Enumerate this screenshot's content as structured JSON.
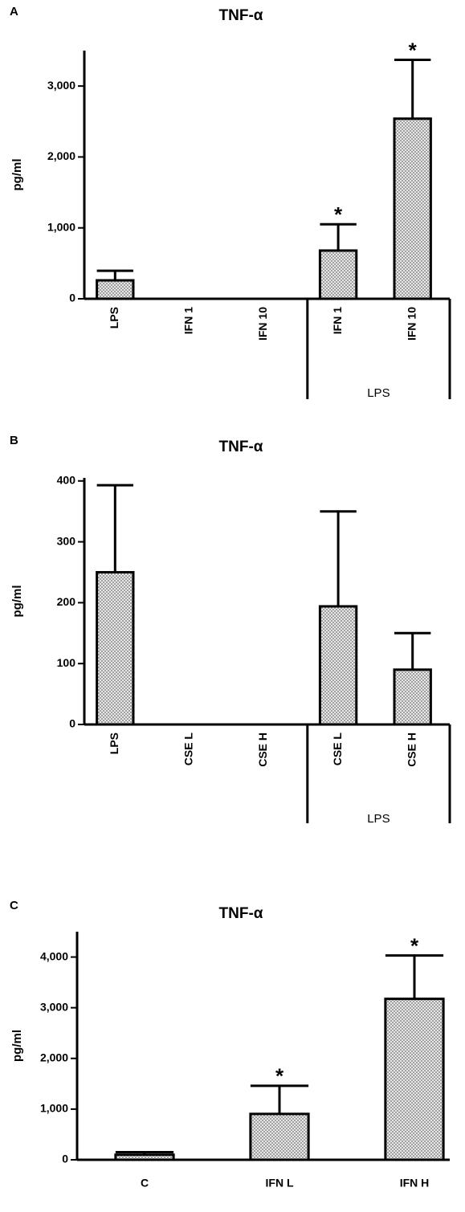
{
  "chart_data": [
    {
      "type": "bar",
      "panel_label": "A",
      "title": "TNF-α",
      "y_label": "pg/ml",
      "categories": [
        "LPS",
        "IFN 1",
        "IFN 10",
        "IFN 1",
        "IFN 10"
      ],
      "groups": [
        null,
        null,
        null,
        "LPS",
        "LPS"
      ],
      "annotations": [
        null,
        null,
        null,
        "*",
        "*"
      ],
      "series": [
        {
          "color": "#a0a0a0",
          "values": [
            260,
            0,
            0,
            680,
            2540
          ],
          "errors": [
            135,
            0,
            0,
            370,
            830
          ]
        }
      ],
      "ylim": [
        0,
        3500
      ],
      "yticks": [
        0,
        {
          "value": 1000,
          "label": "1,000"
        },
        {
          "value": 2000,
          "label": "2,000"
        },
        {
          "value": 3000,
          "label": "3,000"
        }
      ]
    },
    {
      "type": "bar",
      "panel_label": "B",
      "title": "TNF-α",
      "y_label": "pg/ml",
      "categories": [
        "LPS",
        "CSE L",
        "CSE H",
        "CSE L",
        "CSE H"
      ],
      "groups": [
        null,
        null,
        null,
        "LPS",
        "LPS"
      ],
      "annotations": [
        null,
        null,
        null,
        null,
        null
      ],
      "series": [
        {
          "color": "#a0a0a0",
          "values": [
            250,
            0,
            0,
            194,
            90
          ],
          "errors": [
            143,
            0,
            0,
            156,
            60
          ]
        }
      ],
      "ylim": [
        0,
        405
      ],
      "yticks": [
        0,
        100,
        200,
        300,
        400
      ]
    },
    {
      "type": "bar",
      "panel_label": "C",
      "title": "TNF-α",
      "y_label": "pg/ml",
      "categories": [
        "C",
        "IFN L",
        "IFN H"
      ],
      "groups": [
        null,
        null,
        null
      ],
      "annotations": [
        null,
        "*",
        "*"
      ],
      "series": [
        {
          "color": "#a0a0a0",
          "values": [
            100,
            905,
            3175
          ],
          "errors": [
            50,
            555,
            855
          ]
        }
      ],
      "ylim": [
        0,
        4500
      ],
      "yticks": [
        0,
        {
          "value": 1000,
          "label": "1,000"
        },
        {
          "value": 2000,
          "label": "2,000"
        },
        {
          "value": 3000,
          "label": "3,000"
        },
        {
          "value": 4000,
          "label": "4,000"
        }
      ]
    }
  ]
}
